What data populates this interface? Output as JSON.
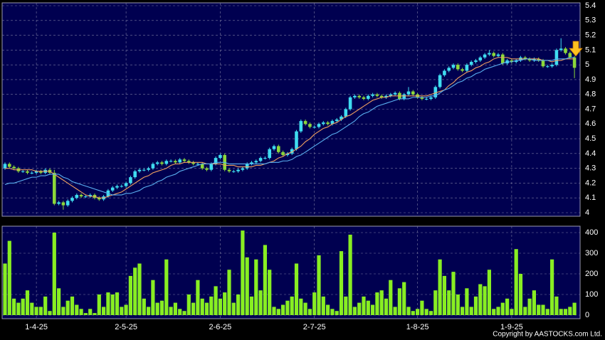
{
  "chart_data": [
    {
      "type": "candlestick",
      "categories": [
        null,
        null,
        null,
        null,
        null,
        null,
        null,
        "1-4-25",
        null,
        null,
        null,
        null,
        null,
        null,
        null,
        null,
        null,
        null,
        null,
        null,
        null,
        null,
        null,
        null,
        null,
        null,
        null,
        "2-5-25",
        null,
        null,
        null,
        null,
        null,
        null,
        null,
        null,
        null,
        null,
        null,
        null,
        null,
        null,
        null,
        null,
        null,
        null,
        null,
        null,
        "2-6-25",
        null,
        null,
        null,
        null,
        null,
        null,
        null,
        null,
        null,
        null,
        null,
        null,
        null,
        null,
        null,
        null,
        null,
        null,
        null,
        null,
        "2-7-25",
        null,
        null,
        null,
        null,
        null,
        null,
        null,
        null,
        null,
        null,
        null,
        null,
        null,
        null,
        null,
        null,
        null,
        null,
        null,
        null,
        null,
        null,
        "1-8-25",
        null,
        null,
        null,
        null,
        null,
        null,
        null,
        null,
        null,
        null,
        null,
        null,
        null,
        null,
        null,
        null,
        null,
        null,
        null,
        null,
        "1-9-25",
        null,
        null,
        null,
        null,
        null,
        null,
        null,
        null,
        null,
        null,
        null,
        null,
        null,
        null
      ],
      "open": [
        4.3,
        4.33,
        4.31,
        4.3,
        4.28,
        4.28,
        4.27,
        4.27,
        4.28,
        4.27,
        4.29,
        4.27,
        4.06,
        4.07,
        4.05,
        4.08,
        4.1,
        4.12,
        4.11,
        4.11,
        4.12,
        4.1,
        4.09,
        4.11,
        4.15,
        4.17,
        4.18,
        4.18,
        4.2,
        4.24,
        4.28,
        4.29,
        4.29,
        4.3,
        4.33,
        4.34,
        4.33,
        4.35,
        4.35,
        4.34,
        4.36,
        4.35,
        4.34,
        4.33,
        4.33,
        4.3,
        4.29,
        4.33,
        4.37,
        4.39,
        4.29,
        4.28,
        4.28,
        4.29,
        4.3,
        4.33,
        4.34,
        4.35,
        4.37,
        4.37,
        4.43,
        4.45,
        4.41,
        4.39,
        4.4,
        4.43,
        4.55,
        4.62,
        4.6,
        4.58,
        4.58,
        4.6,
        4.61,
        4.6,
        4.62,
        4.63,
        4.65,
        4.7,
        4.78,
        4.79,
        4.78,
        4.77,
        4.79,
        4.8,
        4.79,
        4.78,
        4.79,
        4.8,
        4.81,
        4.77,
        4.8,
        4.82,
        4.8,
        4.78,
        4.77,
        4.77,
        4.78,
        4.85,
        4.93,
        4.96,
        4.98,
        5.0,
        4.97,
        4.96,
        5.0,
        5.02,
        5.03,
        5.05,
        5.07,
        5.08,
        5.06,
        5.07,
        5.01,
        5.03,
        5.02,
        5.03,
        5.05,
        5.04,
        5.03,
        5.04,
        5.03,
        4.99,
        4.99,
        5.0,
        5.1,
        5.11,
        5.08,
        5.05
      ],
      "high": [
        4.34,
        4.34,
        4.32,
        4.31,
        4.29,
        4.29,
        4.28,
        4.29,
        4.29,
        4.3,
        4.3,
        4.29,
        4.08,
        4.08,
        4.09,
        4.11,
        4.13,
        4.13,
        4.12,
        4.13,
        4.13,
        4.11,
        4.12,
        4.16,
        4.18,
        4.19,
        4.19,
        4.21,
        4.25,
        4.29,
        4.3,
        4.3,
        4.31,
        4.34,
        4.35,
        4.35,
        4.36,
        4.36,
        4.36,
        4.37,
        4.37,
        4.36,
        4.35,
        4.34,
        4.34,
        4.31,
        4.34,
        4.38,
        4.4,
        4.4,
        4.3,
        4.29,
        4.3,
        4.31,
        4.34,
        4.35,
        4.36,
        4.38,
        4.38,
        4.44,
        4.46,
        4.46,
        4.42,
        4.41,
        4.44,
        4.56,
        4.63,
        4.63,
        4.61,
        4.59,
        4.61,
        4.62,
        4.62,
        4.63,
        4.64,
        4.66,
        4.71,
        4.79,
        4.8,
        4.8,
        4.79,
        4.8,
        4.81,
        4.81,
        4.8,
        4.8,
        4.81,
        4.82,
        4.82,
        4.81,
        4.85,
        4.83,
        4.81,
        4.79,
        4.78,
        4.79,
        4.86,
        4.94,
        4.97,
        4.99,
        5.01,
        5.01,
        4.98,
        5.01,
        5.03,
        5.04,
        5.06,
        5.08,
        5.1,
        5.09,
        5.08,
        5.08,
        5.04,
        5.04,
        5.04,
        5.06,
        5.06,
        5.05,
        5.05,
        5.05,
        5.04,
        5.0,
        5.01,
        5.11,
        5.18,
        5.12,
        5.09,
        5.06
      ],
      "low": [
        4.29,
        4.3,
        4.29,
        4.27,
        4.27,
        4.26,
        4.26,
        4.26,
        4.26,
        4.26,
        4.26,
        4.05,
        4.05,
        4.02,
        4.04,
        4.07,
        4.09,
        4.1,
        4.1,
        4.1,
        4.09,
        4.08,
        4.08,
        4.1,
        4.14,
        4.16,
        4.17,
        4.17,
        4.19,
        4.23,
        4.27,
        4.28,
        4.28,
        4.29,
        4.32,
        4.32,
        4.32,
        4.34,
        4.33,
        4.33,
        4.34,
        4.33,
        4.32,
        4.32,
        4.29,
        4.28,
        4.28,
        4.32,
        4.36,
        4.28,
        4.27,
        4.27,
        4.27,
        4.28,
        4.29,
        4.32,
        4.33,
        4.34,
        4.36,
        4.36,
        4.42,
        4.4,
        4.38,
        4.38,
        4.39,
        4.42,
        4.54,
        4.59,
        4.57,
        4.57,
        4.57,
        4.59,
        4.59,
        4.59,
        4.61,
        4.62,
        4.64,
        4.69,
        4.77,
        4.77,
        4.76,
        4.76,
        4.78,
        4.78,
        4.77,
        4.77,
        4.78,
        4.79,
        4.76,
        4.76,
        4.79,
        4.79,
        4.77,
        4.76,
        4.76,
        4.76,
        4.77,
        4.84,
        4.92,
        4.95,
        4.97,
        4.96,
        4.95,
        4.95,
        4.99,
        5.01,
        5.02,
        5.04,
        5.06,
        5.05,
        5.05,
        5.0,
        5.0,
        5.01,
        5.01,
        5.02,
        5.03,
        5.02,
        5.02,
        5.02,
        4.98,
        4.98,
        4.98,
        4.99,
        5.09,
        5.07,
        5.04,
        4.91
      ],
      "close": [
        4.33,
        4.31,
        4.3,
        4.28,
        4.28,
        4.27,
        4.27,
        4.28,
        4.27,
        4.29,
        4.27,
        4.06,
        4.07,
        4.05,
        4.08,
        4.1,
        4.12,
        4.11,
        4.11,
        4.12,
        4.1,
        4.09,
        4.11,
        4.15,
        4.17,
        4.18,
        4.18,
        4.2,
        4.24,
        4.28,
        4.29,
        4.29,
        4.3,
        4.33,
        4.34,
        4.33,
        4.35,
        4.35,
        4.34,
        4.36,
        4.35,
        4.34,
        4.33,
        4.33,
        4.3,
        4.29,
        4.33,
        4.37,
        4.39,
        4.29,
        4.28,
        4.28,
        4.29,
        4.3,
        4.33,
        4.34,
        4.35,
        4.37,
        4.37,
        4.43,
        4.45,
        4.41,
        4.39,
        4.4,
        4.43,
        4.55,
        4.62,
        4.6,
        4.58,
        4.58,
        4.6,
        4.61,
        4.6,
        4.62,
        4.63,
        4.65,
        4.7,
        4.78,
        4.79,
        4.78,
        4.77,
        4.79,
        4.8,
        4.79,
        4.78,
        4.79,
        4.8,
        4.81,
        4.77,
        4.8,
        4.82,
        4.8,
        4.78,
        4.77,
        4.77,
        4.78,
        4.85,
        4.93,
        4.96,
        4.98,
        5.0,
        4.97,
        4.96,
        5.0,
        5.02,
        5.03,
        5.05,
        5.07,
        5.08,
        5.06,
        5.07,
        5.01,
        5.03,
        5.02,
        5.03,
        5.05,
        5.04,
        5.03,
        5.04,
        5.03,
        4.99,
        4.99,
        5.0,
        5.1,
        5.11,
        5.08,
        5.05,
        4.98
      ],
      "up_color": "#3fdcf0",
      "down_color": "#8cd83a",
      "series": [
        {
          "color": "#f0a060",
          "values": [
            4.3,
            4.3,
            4.29,
            4.29,
            4.29,
            4.29,
            4.29,
            4.28,
            4.28,
            4.28,
            4.28,
            4.26,
            4.24,
            4.22,
            4.2,
            4.18,
            4.16,
            4.14,
            4.12,
            4.11,
            4.11,
            4.1,
            4.1,
            4.11,
            4.12,
            4.13,
            4.14,
            4.16,
            4.18,
            4.2,
            4.22,
            4.24,
            4.25,
            4.27,
            4.28,
            4.29,
            4.3,
            4.32,
            4.33,
            4.33,
            4.34,
            4.34,
            4.34,
            4.34,
            4.34,
            4.33,
            4.33,
            4.33,
            4.33,
            4.32,
            4.32,
            4.32,
            4.31,
            4.31,
            4.31,
            4.31,
            4.32,
            4.32,
            4.33,
            4.34,
            4.35,
            4.37,
            4.38,
            4.4,
            4.41,
            4.43,
            4.45,
            4.48,
            4.5,
            4.53,
            4.55,
            4.57,
            4.58,
            4.6,
            4.61,
            4.63,
            4.65,
            4.66,
            4.68,
            4.7,
            4.72,
            4.74,
            4.76,
            4.77,
            4.78,
            4.78,
            4.79,
            4.79,
            4.79,
            4.79,
            4.79,
            4.79,
            4.79,
            4.79,
            4.79,
            4.8,
            4.81,
            4.82,
            4.83,
            4.86,
            4.88,
            4.91,
            4.93,
            4.95,
            4.96,
            4.98,
            4.99,
            5.01,
            5.02,
            5.04,
            5.05,
            5.05,
            5.05,
            5.04,
            5.04,
            5.04,
            5.04,
            5.04,
            5.04,
            5.04,
            5.03,
            5.03,
            5.02,
            5.03,
            5.03,
            5.04,
            5.04,
            5.04
          ]
        },
        {
          "color": "#5ab0f0",
          "values": [
            4.19,
            4.2,
            4.2,
            4.21,
            4.22,
            4.23,
            4.24,
            4.24,
            4.25,
            4.25,
            4.26,
            4.26,
            4.26,
            4.24,
            4.23,
            4.21,
            4.2,
            4.19,
            4.18,
            4.17,
            4.16,
            4.15,
            4.14,
            4.13,
            4.12,
            4.12,
            4.12,
            4.13,
            4.13,
            4.14,
            4.15,
            4.17,
            4.18,
            4.19,
            4.21,
            4.22,
            4.24,
            4.25,
            4.26,
            4.28,
            4.29,
            4.3,
            4.31,
            4.32,
            4.33,
            4.33,
            4.33,
            4.34,
            4.34,
            4.34,
            4.33,
            4.33,
            4.33,
            4.33,
            4.33,
            4.33,
            4.33,
            4.33,
            4.33,
            4.34,
            4.34,
            4.34,
            4.35,
            4.35,
            4.36,
            4.38,
            4.39,
            4.41,
            4.43,
            4.45,
            4.47,
            4.49,
            4.51,
            4.53,
            4.54,
            4.56,
            4.58,
            4.6,
            4.62,
            4.65,
            4.67,
            4.68,
            4.7,
            4.72,
            4.73,
            4.74,
            4.75,
            4.76,
            4.77,
            4.77,
            4.77,
            4.78,
            4.78,
            4.78,
            4.78,
            4.79,
            4.79,
            4.81,
            4.83,
            4.84,
            4.86,
            4.88,
            4.89,
            4.91,
            4.92,
            4.94,
            4.95,
            4.97,
            4.98,
            4.99,
            5.0,
            5.01,
            5.02,
            5.02,
            5.03,
            5.03,
            5.04,
            5.04,
            5.03,
            5.03,
            5.03,
            5.03,
            5.03,
            5.04,
            5.04,
            5.04,
            5.05,
            5.05
          ]
        }
      ],
      "ylim": [
        4,
        5.4
      ],
      "yticks": [
        4,
        4.1,
        4.2,
        4.3,
        4.4,
        4.5,
        4.6,
        4.7,
        4.8,
        4.9,
        5,
        5.1,
        5.2,
        5.3,
        5.4
      ],
      "grid": true
    },
    {
      "type": "bar",
      "color": "#88ee22",
      "values": [
        250,
        360,
        80,
        60,
        80,
        120,
        60,
        40,
        40,
        90,
        20,
        400,
        130,
        40,
        70,
        90,
        50,
        30,
        10,
        30,
        10,
        100,
        40,
        110,
        100,
        110,
        40,
        50,
        190,
        230,
        250,
        80,
        40,
        170,
        60,
        70,
        270,
        40,
        60,
        30,
        20,
        100,
        60,
        170,
        80,
        60,
        90,
        140,
        80,
        110,
        220,
        60,
        100,
        410,
        280,
        90,
        270,
        120,
        340,
        220,
        40,
        30,
        50,
        70,
        90,
        250,
        80,
        60,
        30,
        110,
        290,
        90,
        50,
        30,
        20,
        310,
        90,
        390,
        40,
        60,
        90,
        70,
        50,
        110,
        120,
        80,
        170,
        40,
        130,
        160,
        40,
        20,
        30,
        70,
        30,
        20,
        120,
        270,
        190,
        120,
        210,
        100,
        40,
        130,
        40,
        90,
        150,
        140,
        220,
        30,
        40,
        60,
        80,
        30,
        320,
        200,
        40,
        80,
        120,
        50,
        50,
        30,
        270,
        90,
        30,
        30,
        40,
        60
      ],
      "ylim": [
        0,
        400
      ],
      "yticks": [
        0,
        100,
        200,
        300,
        400
      ],
      "grid": true
    }
  ],
  "copyright": "Copyright by AASTOCKS.com Ltd."
}
